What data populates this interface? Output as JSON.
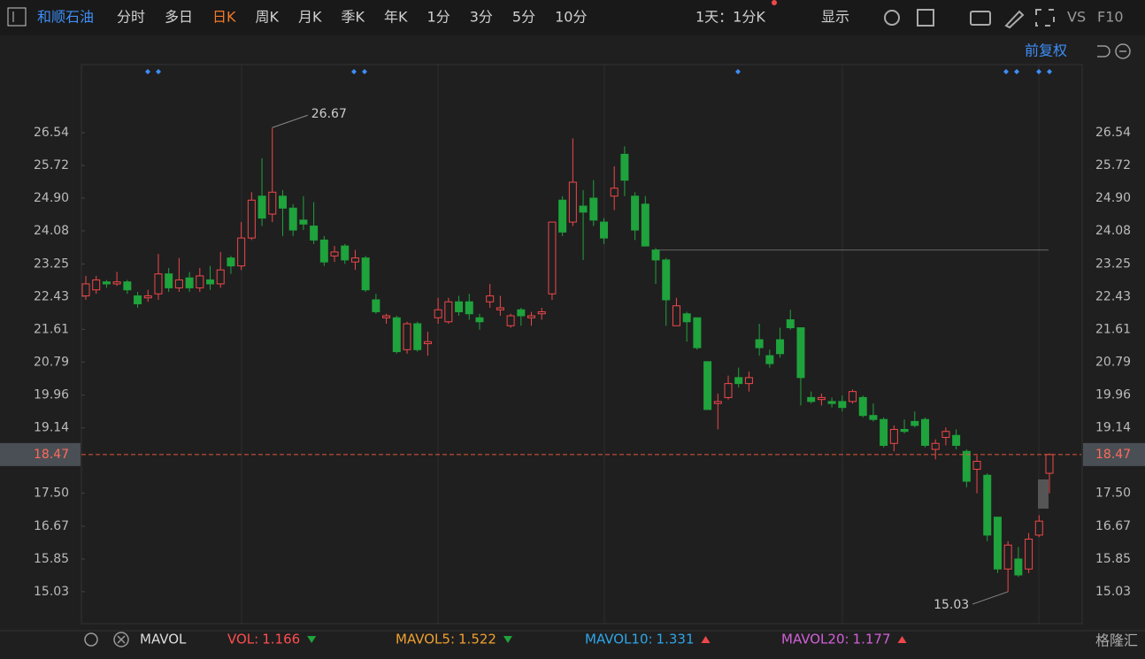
{
  "toolbar": {
    "stock": "和顺石油",
    "periods": [
      "分时",
      "多日",
      "日K",
      "周K",
      "月K",
      "季K",
      "年K",
      "1分",
      "3分",
      "5分",
      "10分"
    ],
    "active": 2,
    "interval": "1天：1分K",
    "display": "显示",
    "vs": "VS",
    "f10": "F10"
  },
  "adjust": "前复权",
  "chart_data": {
    "type": "candlestick",
    "up_color": "#f0474a",
    "down_color": "#1fa33c",
    "ylim": [
      14.23,
      28.25
    ],
    "yticks": [
      26.54,
      25.72,
      {
        "value": 24.9,
        "label": "24.90"
      },
      24.08,
      23.25,
      22.43,
      21.61,
      20.79,
      19.96,
      19.14,
      {
        "value": 17.5,
        "label": "17.50"
      },
      16.67,
      15.85,
      15.03
    ],
    "hline": 23.6,
    "open": [
      22.45,
      22.6,
      22.8,
      22.75,
      22.8,
      22.45,
      22.4,
      22.5,
      23.0,
      22.65,
      22.9,
      22.65,
      22.85,
      22.75,
      23.4,
      23.2,
      23.9,
      24.95,
      24.5,
      24.95,
      24.65,
      24.35,
      24.2,
      23.85,
      23.45,
      23.7,
      23.3,
      23.4,
      22.35,
      21.9,
      21.9,
      21.1,
      21.75,
      21.25,
      21.9,
      21.8,
      22.3,
      22.3,
      21.9,
      22.3,
      22.1,
      21.7,
      22.1,
      21.9,
      22.0,
      22.5,
      24.85,
      24.3,
      24.7,
      24.9,
      24.3,
      24.95,
      26.0,
      24.95,
      24.75,
      23.6,
      23.35,
      21.7,
      22.0,
      21.9,
      20.8,
      19.75,
      19.9,
      20.4,
      20.25,
      21.35,
      20.95,
      21.35,
      21.85,
      21.65,
      19.9,
      19.85,
      19.8,
      19.8,
      19.8,
      19.9,
      19.45,
      19.35,
      18.75,
      19.1,
      19.3,
      19.35,
      18.6,
      18.9,
      18.95,
      18.55,
      18.1,
      17.95,
      16.9,
      15.6,
      15.85,
      15.6,
      16.45,
      18.0
    ],
    "high": [
      22.95,
      22.95,
      22.85,
      23.05,
      22.85,
      22.55,
      22.6,
      23.5,
      23.15,
      23.4,
      23.05,
      23.15,
      23.2,
      23.55,
      23.45,
      24.3,
      25.05,
      25.9,
      26.67,
      25.1,
      24.75,
      24.95,
      24.8,
      23.95,
      23.7,
      23.75,
      23.6,
      23.45,
      22.5,
      22.0,
      21.95,
      21.8,
      21.8,
      21.55,
      22.4,
      22.4,
      22.45,
      22.5,
      22.0,
      22.75,
      22.45,
      22.0,
      22.15,
      22.05,
      22.15,
      24.3,
      24.95,
      26.4,
      25.1,
      25.35,
      24.4,
      25.7,
      26.2,
      25.05,
      24.95,
      23.65,
      23.4,
      22.4,
      22.05,
      21.9,
      20.8,
      20.0,
      20.45,
      20.65,
      20.55,
      21.75,
      21.1,
      21.65,
      22.1,
      21.65,
      20.05,
      20.0,
      19.9,
      19.95,
      20.1,
      19.95,
      19.75,
      19.4,
      19.2,
      19.35,
      19.55,
      19.4,
      18.85,
      19.15,
      19.1,
      18.6,
      18.45,
      18.0,
      16.9,
      16.3,
      16.15,
      16.5,
      16.95,
      18.5
    ],
    "low": [
      22.35,
      22.5,
      22.65,
      22.7,
      22.5,
      22.15,
      22.3,
      22.35,
      22.55,
      22.55,
      22.55,
      22.55,
      22.6,
      22.65,
      23.0,
      23.1,
      23.85,
      24.2,
      24.3,
      23.95,
      23.95,
      24.1,
      23.75,
      23.2,
      23.3,
      23.25,
      23.1,
      22.55,
      22.0,
      21.75,
      21.0,
      21.0,
      21.05,
      20.95,
      21.75,
      21.75,
      21.95,
      21.85,
      21.6,
      22.15,
      21.95,
      21.65,
      21.7,
      21.7,
      21.85,
      22.35,
      23.95,
      24.2,
      23.35,
      24.2,
      23.75,
      24.6,
      24.95,
      23.85,
      23.7,
      22.75,
      21.7,
      21.7,
      21.3,
      21.1,
      19.6,
      19.1,
      19.85,
      20.15,
      20.05,
      20.95,
      20.65,
      20.9,
      21.6,
      19.7,
      19.75,
      19.7,
      19.65,
      19.55,
      19.75,
      19.4,
      19.3,
      18.65,
      18.55,
      19.0,
      19.15,
      18.65,
      18.35,
      18.7,
      18.6,
      17.65,
      17.5,
      16.3,
      15.5,
      15.03,
      15.4,
      15.5,
      16.4,
      17.5
    ],
    "close": [
      22.75,
      22.85,
      22.75,
      22.8,
      22.6,
      22.25,
      22.45,
      23.0,
      22.65,
      22.85,
      22.65,
      22.95,
      22.75,
      23.1,
      23.2,
      23.9,
      24.85,
      24.4,
      25.05,
      24.65,
      24.1,
      24.25,
      23.85,
      23.3,
      23.55,
      23.35,
      23.4,
      22.6,
      22.05,
      21.95,
      21.05,
      21.75,
      21.1,
      21.3,
      22.1,
      22.3,
      22.05,
      22.0,
      21.8,
      22.45,
      22.15,
      21.95,
      21.95,
      21.95,
      22.05,
      24.3,
      24.05,
      25.3,
      24.55,
      24.35,
      23.9,
      25.15,
      25.35,
      24.1,
      23.7,
      23.35,
      22.35,
      22.2,
      21.8,
      21.15,
      19.6,
      19.8,
      20.25,
      20.25,
      20.4,
      21.15,
      20.75,
      21.0,
      21.65,
      20.4,
      19.8,
      19.9,
      19.75,
      19.65,
      20.05,
      19.45,
      19.35,
      18.7,
      19.1,
      19.05,
      19.2,
      18.7,
      18.75,
      19.05,
      18.7,
      17.8,
      18.3,
      16.45,
      15.6,
      16.2,
      15.45,
      16.35,
      16.8,
      18.47
    ]
  },
  "indicators": {
    "name": "MAVOL",
    "items": [
      {
        "label": "VOL:",
        "value": 1.166,
        "color": "#ff4d4f",
        "trend": "down"
      },
      {
        "label": "MAVOL5:",
        "value": 1.522,
        "color": "#f0a030",
        "trend": "down"
      },
      {
        "label": "MAVOL10:",
        "value": 1.331,
        "color": "#2fa6e8",
        "trend": "up"
      },
      {
        "label": "MAVOL20:",
        "value": 1.177,
        "color": "#d160d8",
        "trend": "up"
      }
    ]
  },
  "watermark": "格隆汇"
}
